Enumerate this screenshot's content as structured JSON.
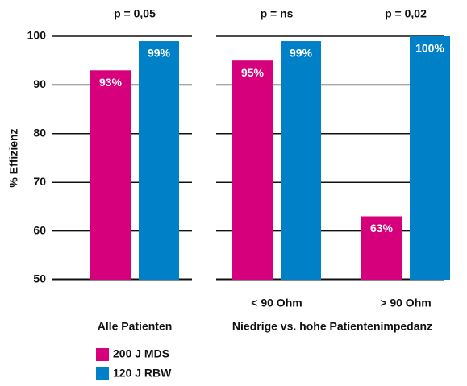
{
  "chart_data": [
    {
      "type": "bar",
      "ylabel": "% Effizienz",
      "xlabel": "Alle Patienten",
      "categories": [
        null
      ],
      "annotations": [
        "p = 0,05"
      ],
      "ylim": [
        50,
        100
      ],
      "yticks": [
        50,
        60,
        70,
        80,
        90,
        100
      ],
      "series": [
        {
          "name": "200 J MDS",
          "color": "#d6007c",
          "values": [
            93
          ],
          "value_labels": [
            "93%"
          ]
        },
        {
          "name": "120 J RBW",
          "color": "#0080c6",
          "values": [
            99
          ],
          "value_labels": [
            "99%"
          ]
        }
      ]
    },
    {
      "type": "bar",
      "xlabel": "Niedrige vs. hohe Patientenimpedanz",
      "categories": [
        "< 90 Ohm",
        "> 90 Ohm"
      ],
      "annotations": [
        "p = ns",
        "p = 0,02"
      ],
      "ylim": [
        50,
        100
      ],
      "yticks": [
        50,
        60,
        70,
        80,
        90,
        100
      ],
      "series": [
        {
          "color": "#d6007c",
          "values": [
            95,
            63
          ],
          "value_labels": [
            "95%",
            "63%"
          ]
        },
        {
          "color": "#0080c6",
          "values": [
            99,
            100
          ],
          "value_labels": [
            "99%",
            "100%"
          ]
        }
      ]
    }
  ]
}
